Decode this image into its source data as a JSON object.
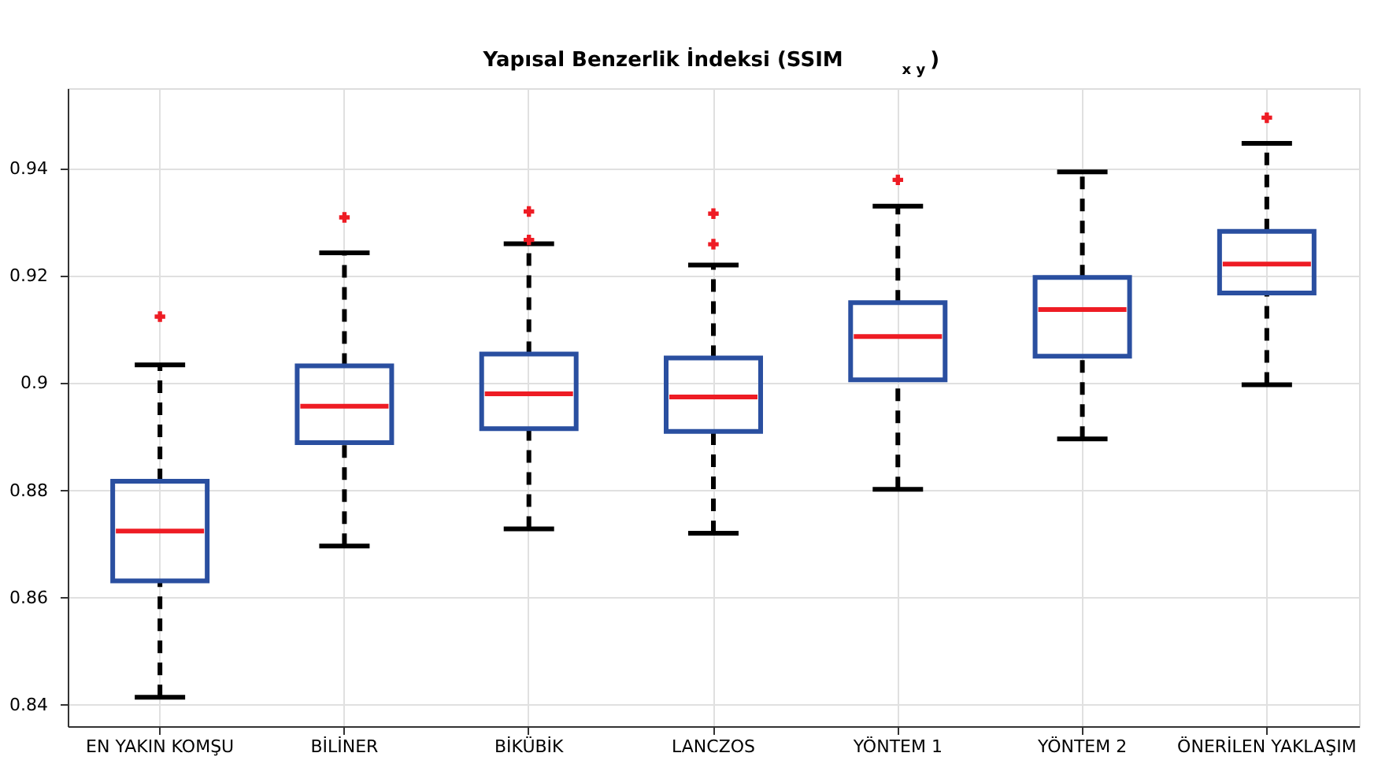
{
  "chart_data": {
    "type": "box",
    "title": "Yapısal Benzerlik İndeksi (SSIM$_{x y}$)",
    "categories": [
      "EN YAKIN KOMŞU",
      "BİLİNER",
      "BİKÜBİK",
      "LANCZOS",
      "YÖNTEM 1",
      "YÖNTEM 2",
      "ÖNERİLEN YAKLAŞIM"
    ],
    "boxes": [
      {
        "low": 0.8414,
        "q1": 0.8631,
        "median": 0.8724,
        "q3": 0.8817,
        "high": 0.9034,
        "outliers": [
          0.9124
        ]
      },
      {
        "low": 0.8696,
        "q1": 0.8889,
        "median": 0.8957,
        "q3": 0.9032,
        "high": 0.9243,
        "outliers": [
          0.9309
        ]
      },
      {
        "low": 0.8728,
        "q1": 0.8915,
        "median": 0.898,
        "q3": 0.9054,
        "high": 0.926,
        "outliers": [
          0.932,
          0.9267
        ]
      },
      {
        "low": 0.872,
        "q1": 0.891,
        "median": 0.8974,
        "q3": 0.9047,
        "high": 0.922,
        "outliers": [
          0.9316,
          0.9259
        ]
      },
      {
        "low": 0.8802,
        "q1": 0.9006,
        "median": 0.9087,
        "q3": 0.915,
        "high": 0.933,
        "outliers": [
          0.9379
        ]
      },
      {
        "low": 0.8896,
        "q1": 0.905,
        "median": 0.9137,
        "q3": 0.9197,
        "high": 0.9394
      },
      {
        "low": 0.8997,
        "q1": 0.9168,
        "median": 0.9222,
        "q3": 0.9283,
        "high": 0.9447,
        "outliers": [
          0.9495
        ]
      }
    ],
    "color": "#2a4fa0",
    "marker": "cross",
    "line_style": "dashed",
    "ylim": [
      0.836,
      0.955
    ],
    "yticks": [
      0.84,
      0.86,
      0.88,
      0.9,
      0.92,
      0.94
    ],
    "grid": true
  }
}
